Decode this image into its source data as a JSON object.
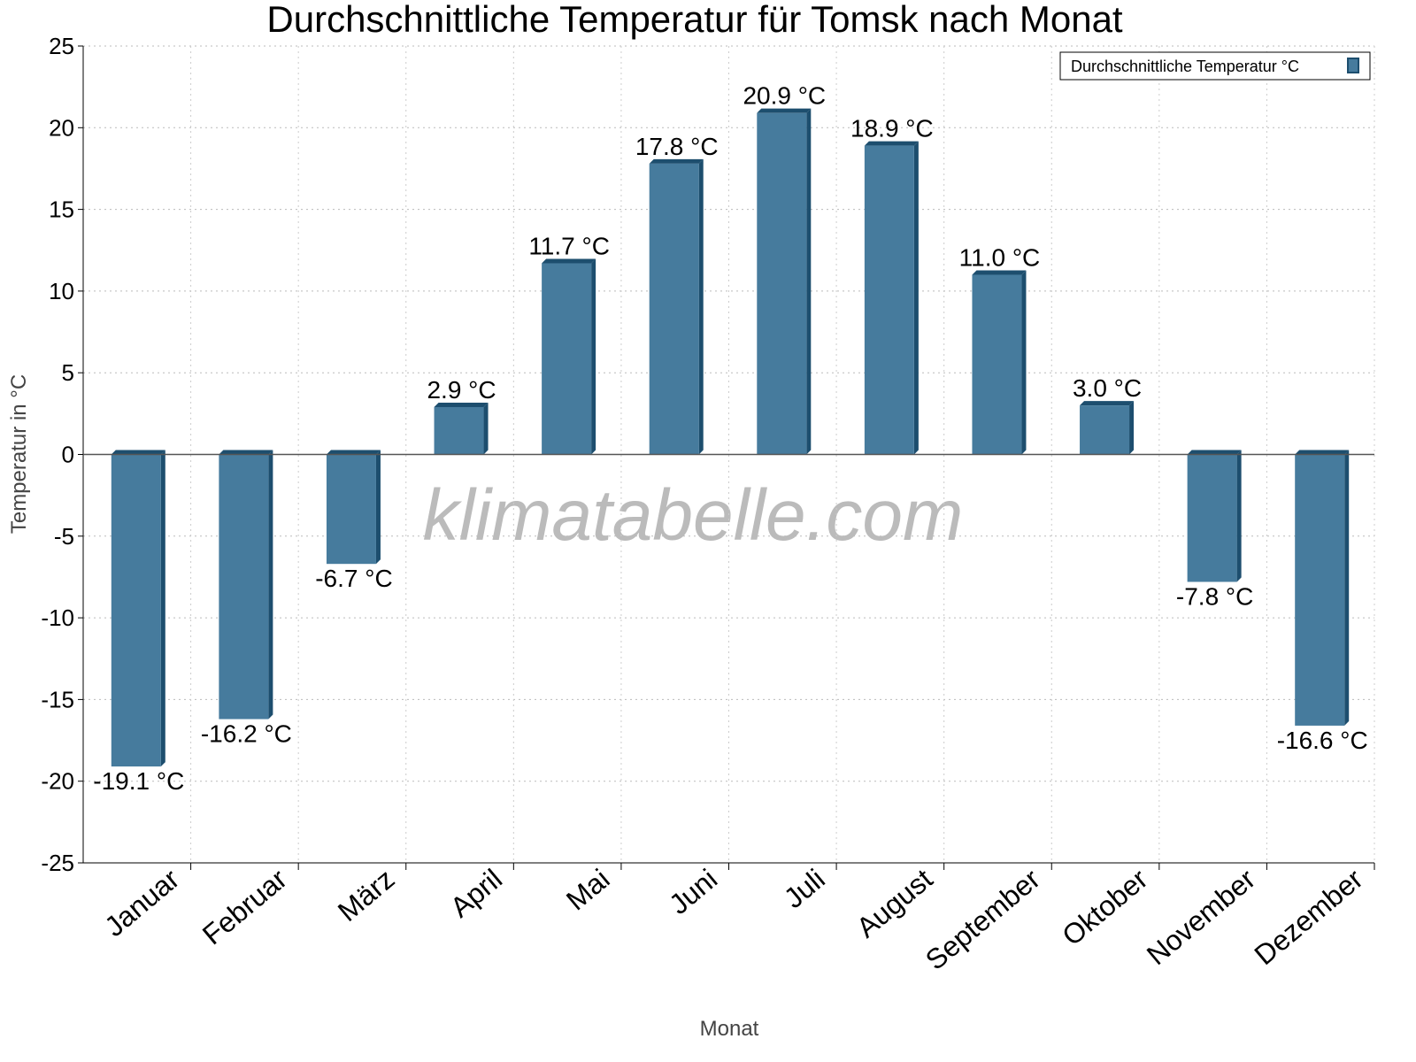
{
  "chart_data": {
    "type": "bar",
    "title": "Durchschnittliche Temperatur für Tomsk nach Monat",
    "xlabel": "Monat",
    "ylabel": "Temperatur in °C",
    "ylim": [
      -25,
      25
    ],
    "yticks": [
      25,
      20,
      15,
      10,
      5,
      0,
      -5,
      -10,
      -15,
      -20,
      -25
    ],
    "grid": true,
    "legend_position": "top-right",
    "unit": "°C",
    "categories": [
      "Januar",
      "Februar",
      "März",
      "April",
      "Mai",
      "Juni",
      "Juli",
      "August",
      "September",
      "Oktober",
      "November",
      "Dezember"
    ],
    "series": [
      {
        "name": "Durchschnittliche Temperatur °C",
        "values": [
          -19.1,
          -16.2,
          -6.7,
          2.9,
          11.7,
          17.8,
          20.9,
          18.9,
          11.0,
          3.0,
          -7.8,
          -16.6
        ],
        "labels": [
          "-19.1 °C",
          "-16.2 °C",
          "-6.7 °C",
          "2.9 °C",
          "11.7 °C",
          "17.8 °C",
          "20.9 °C",
          "18.9 °C",
          "11.0 °C",
          "3.0 °C",
          "-7.8 °C",
          "-16.6 °C"
        ]
      }
    ],
    "colors": {
      "bar": "#467b9d",
      "bar_dark": "#1d4e6e"
    },
    "watermark": "klimatabelle.com"
  }
}
